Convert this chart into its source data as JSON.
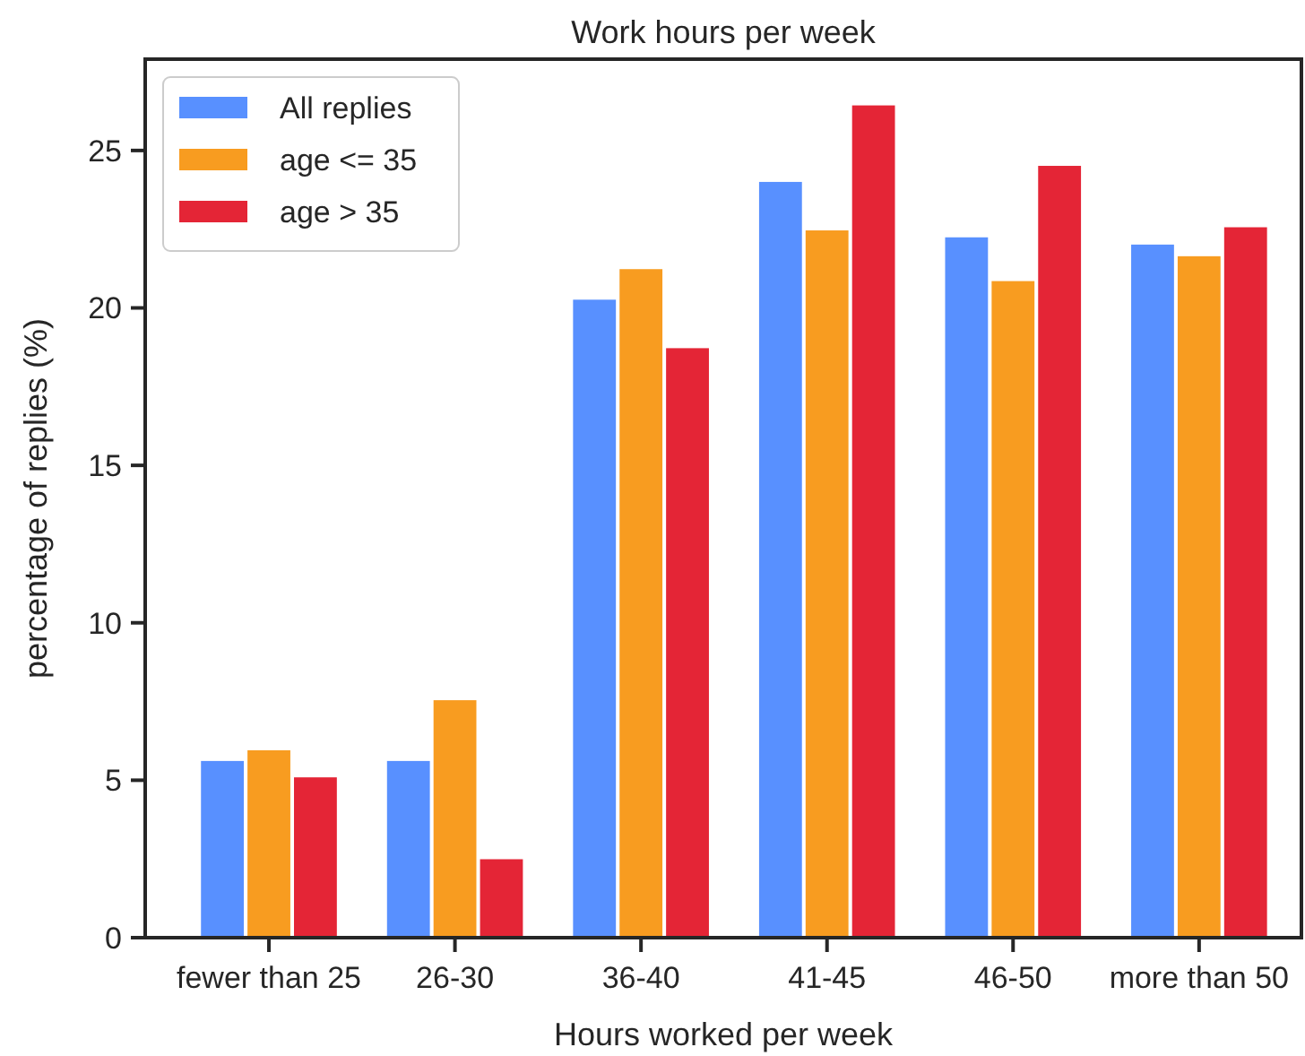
{
  "chart_data": {
    "type": "bar",
    "title": "Work hours per week",
    "xlabel": "Hours worked per week",
    "ylabel": "percentage of replies (%)",
    "categories": [
      "fewer than 25",
      "26-30",
      "36-40",
      "41-45",
      "46-50",
      "more than 50"
    ],
    "series": [
      {
        "name": "All replies",
        "color": "#5890ff",
        "values": [
          5.64,
          5.64,
          20.29,
          24.03,
          22.27,
          22.04
        ]
      },
      {
        "name": "age <= 35",
        "color": "#f89c20",
        "values": [
          5.98,
          7.57,
          21.26,
          22.49,
          20.88,
          21.67
        ]
      },
      {
        "name": "age > 35",
        "color": "#e42536",
        "values": [
          5.12,
          2.52,
          18.75,
          26.46,
          24.54,
          22.59
        ]
      }
    ],
    "ylim": [
      0,
      27.9
    ],
    "yticks": [
      0,
      5,
      10,
      15,
      20,
      25
    ],
    "grid": false,
    "legend": "top left"
  }
}
